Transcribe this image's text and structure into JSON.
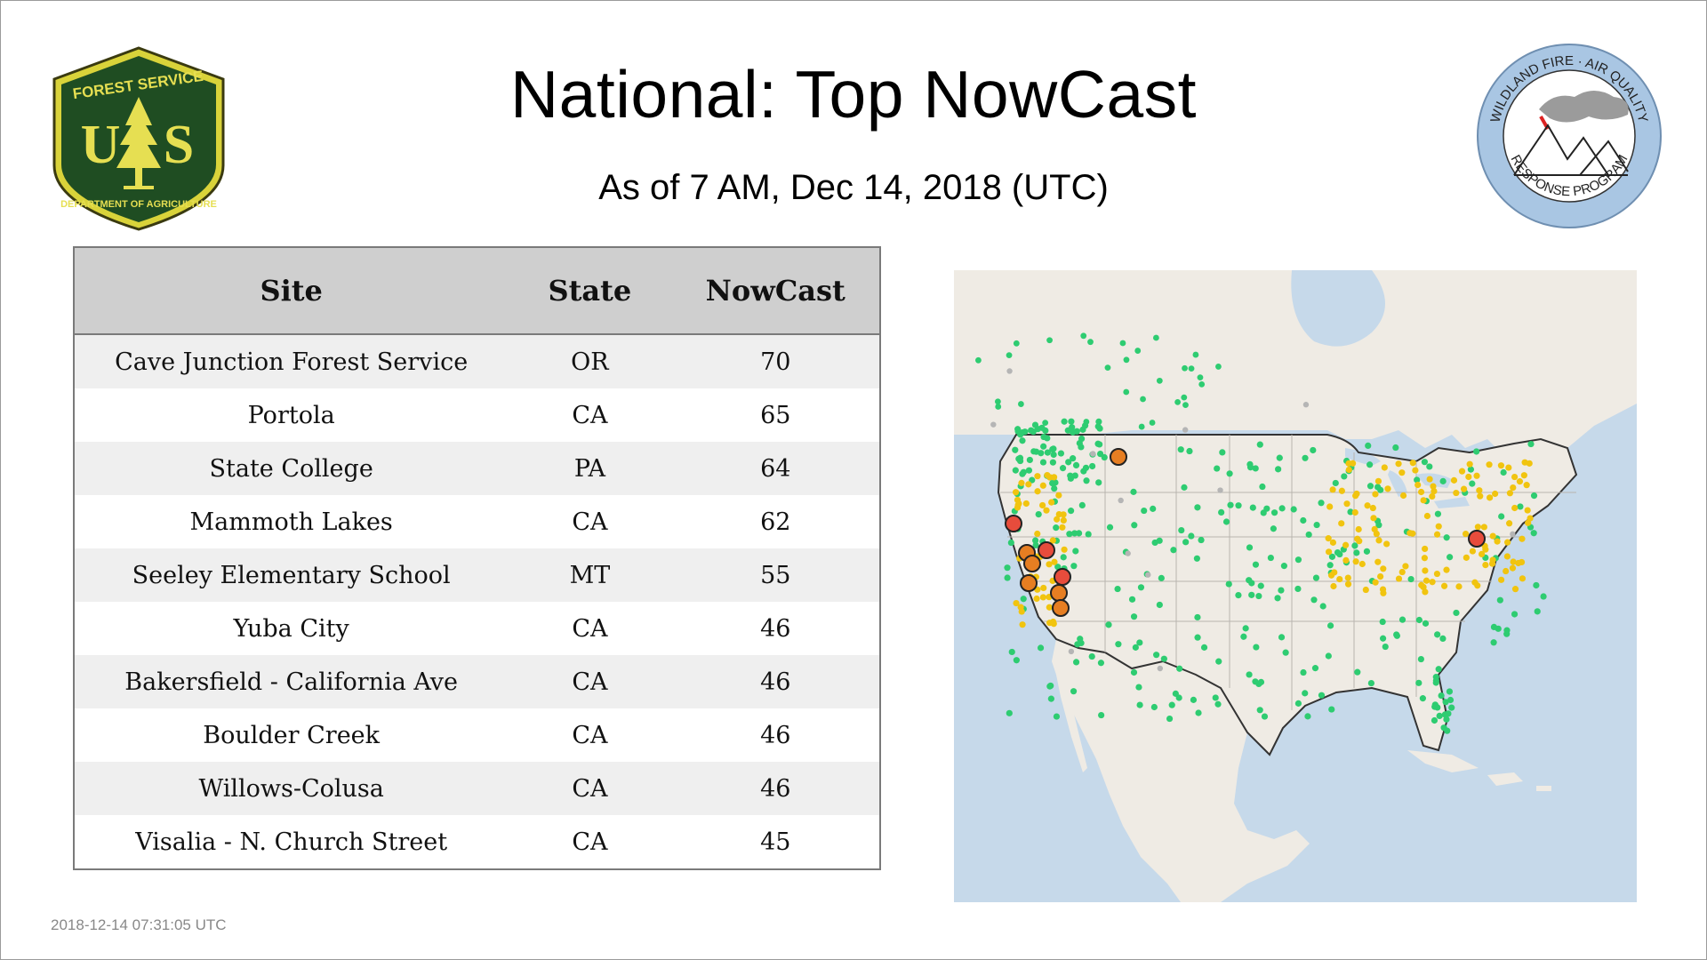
{
  "header": {
    "title": "National: Top NowCast",
    "subtitle": "As of  7 AM, Dec 14, 2018 (UTC)"
  },
  "logos": {
    "usfs": {
      "text_top": "FOREST SERVICE",
      "text_bottom": "DEPARTMENT OF AGRICULTURE",
      "letters": "U S"
    },
    "wfaq": {
      "text_top": "WILDLAND FIRE · AIR QUALITY",
      "text_bottom": "RESPONSE PROGRAM"
    }
  },
  "table": {
    "columns": [
      "Site",
      "State",
      "NowCast"
    ],
    "rows": [
      {
        "site": "Cave Junction Forest Service",
        "state": "OR",
        "nowcast": "70"
      },
      {
        "site": "Portola",
        "state": "CA",
        "nowcast": "65"
      },
      {
        "site": "State College",
        "state": "PA",
        "nowcast": "64"
      },
      {
        "site": "Mammoth Lakes",
        "state": "CA",
        "nowcast": "62"
      },
      {
        "site": "Seeley Elementary School",
        "state": "MT",
        "nowcast": "55"
      },
      {
        "site": "Yuba City",
        "state": "CA",
        "nowcast": "46"
      },
      {
        "site": "Bakersfield - California Ave",
        "state": "CA",
        "nowcast": "46"
      },
      {
        "site": "Boulder Creek",
        "state": "CA",
        "nowcast": "46"
      },
      {
        "site": "Willows-Colusa",
        "state": "CA",
        "nowcast": "46"
      },
      {
        "site": "Visalia - N. Church Street",
        "state": "CA",
        "nowcast": "45"
      }
    ]
  },
  "map": {
    "colors": {
      "good": "#2ecc71",
      "moderate": "#f1c40f",
      "usg": "#e67e22",
      "unhealthy": "#e74c3c",
      "nodata": "#b5b5b5",
      "water": "#c6d9ea",
      "land": "#efebe4"
    }
  },
  "footer": {
    "timestamp": "2018-12-14 07:31:05 UTC"
  }
}
